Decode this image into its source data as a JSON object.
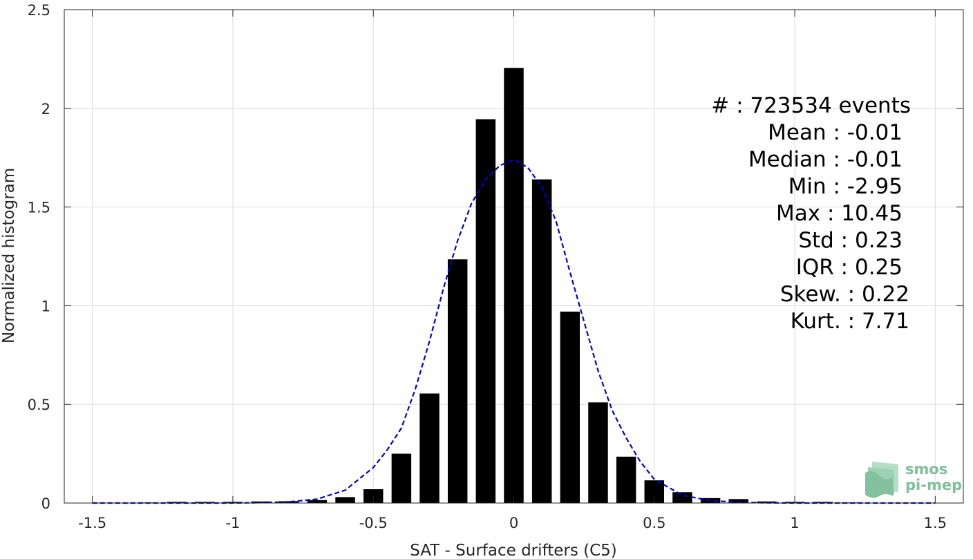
{
  "chart_data": {
    "type": "bar",
    "xlabel": "SAT - Surface drifters (C5)",
    "ylabel": "Normalized histogram",
    "xlim": [
      -1.6,
      1.6
    ],
    "ylim": [
      0,
      2.5
    ],
    "xticks": [
      -1.5,
      -1,
      -0.5,
      0,
      0.5,
      1,
      1.5
    ],
    "xtick_labels": [
      "-1.5",
      "-1",
      "-0.5",
      "0",
      "0.5",
      "1",
      "1.5"
    ],
    "yticks": [
      0,
      0.5,
      1,
      1.5,
      2,
      2.5
    ],
    "ytick_labels": [
      "0",
      "0.5",
      "1",
      "1.5",
      "2",
      "2.5"
    ],
    "grid": true,
    "bar_color": "#000000",
    "bar_width": 0.07,
    "bars": {
      "x": [
        -1.5,
        -1.4,
        -1.3,
        -1.2,
        -1.1,
        -1.0,
        -0.9,
        -0.8,
        -0.7,
        -0.6,
        -0.5,
        -0.4,
        -0.3,
        -0.2,
        -0.1,
        0.0,
        0.1,
        0.2,
        0.3,
        0.4,
        0.5,
        0.6,
        0.7,
        0.8,
        0.9,
        1.0,
        1.1,
        1.2,
        1.3,
        1.4,
        1.5
      ],
      "y": [
        0.0,
        0.001,
        0.003,
        0.006,
        0.006,
        0.006,
        0.008,
        0.009,
        0.015,
        0.03,
        0.07,
        0.25,
        0.555,
        1.235,
        1.945,
        2.205,
        1.64,
        0.97,
        0.51,
        0.235,
        0.115,
        0.055,
        0.025,
        0.02,
        0.008,
        0.006,
        0.006,
        0.003,
        0.001,
        0.001,
        0.001
      ]
    },
    "fit_curve": {
      "style": "dashed",
      "color": "#0000cc",
      "x": [
        -1.5,
        -1.4,
        -1.3,
        -1.2,
        -1.1,
        -1.0,
        -0.9,
        -0.8,
        -0.7,
        -0.6,
        -0.5,
        -0.45,
        -0.4,
        -0.35,
        -0.3,
        -0.25,
        -0.2,
        -0.15,
        -0.1,
        -0.05,
        0.0,
        0.05,
        0.1,
        0.15,
        0.2,
        0.25,
        0.3,
        0.35,
        0.4,
        0.45,
        0.5,
        0.6,
        0.7,
        0.8,
        0.9,
        1.0,
        1.1,
        1.2,
        1.3,
        1.4,
        1.5
      ],
      "y": [
        0.0,
        0.0,
        0.0,
        0.0,
        0.0,
        0.0,
        0.002,
        0.006,
        0.02,
        0.065,
        0.18,
        0.27,
        0.38,
        0.58,
        0.82,
        1.09,
        1.33,
        1.52,
        1.64,
        1.71,
        1.74,
        1.7,
        1.6,
        1.43,
        1.17,
        0.92,
        0.67,
        0.47,
        0.33,
        0.21,
        0.12,
        0.04,
        0.012,
        0.004,
        0.001,
        0.0,
        0.0,
        0.0,
        0.0,
        0.0,
        0.0
      ]
    }
  },
  "stats": [
    "#   : 723534 events",
    "Mean : -0.01",
    "Median : -0.01",
    "Min : -2.95",
    "Max : 10.45",
    "Std : 0.23",
    "IQR : 0.25",
    "Skew. : 0.22",
    "Kurt. : 7.71"
  ],
  "logo": {
    "line1": "smos",
    "line2": "pi-mep",
    "color": "#7fbf9a"
  }
}
